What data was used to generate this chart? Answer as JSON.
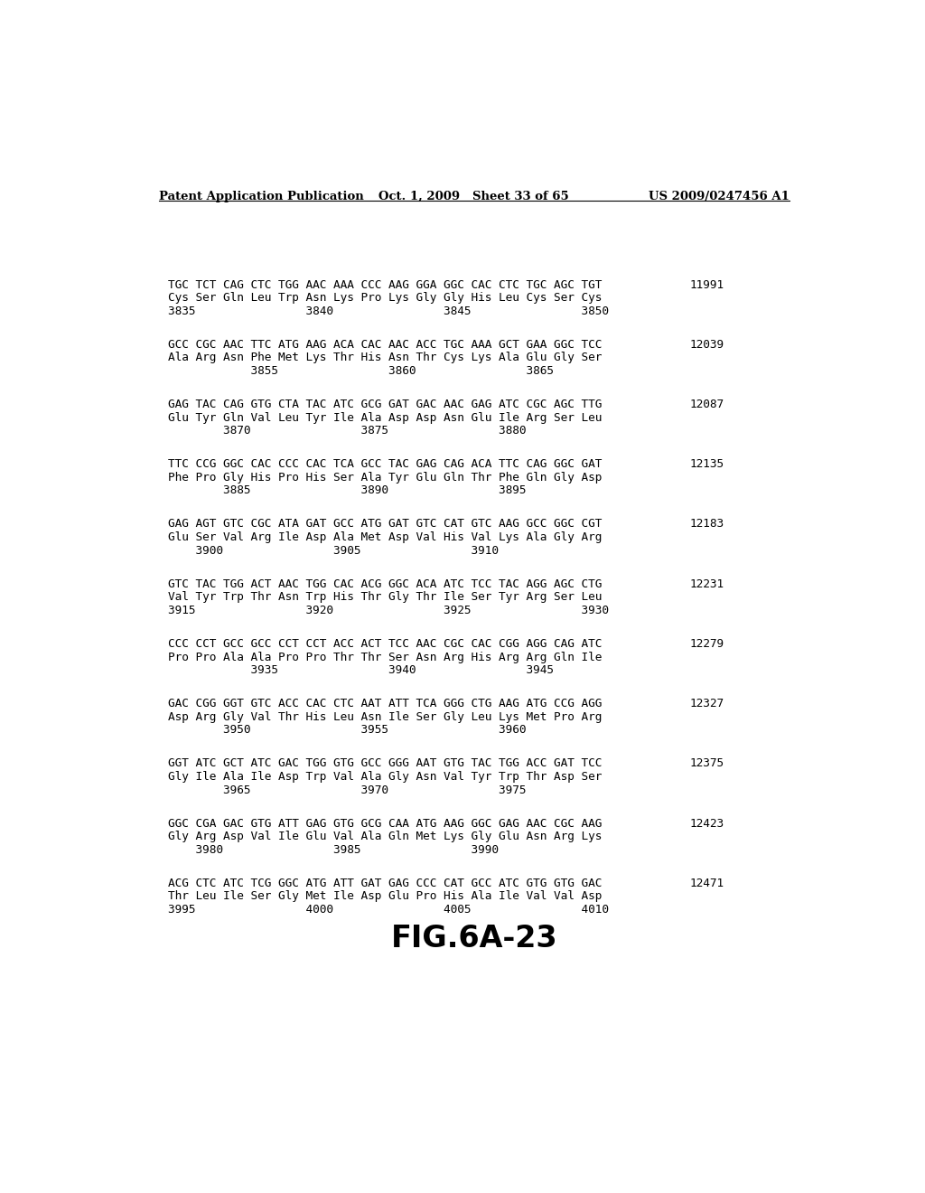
{
  "header_left": "Patent Application Publication",
  "header_mid": "Oct. 1, 2009   Sheet 33 of 65",
  "header_right": "US 2009/0247456 A1",
  "figure_label": "FIG.6A-23",
  "blocks": [
    {
      "line1": "TGC TCT CAG CTC TGG AAC AAA CCC AAG GGA GGC CAC CTC TGC AGC TGT",
      "line2": "Cys Ser Gln Leu Trp Asn Lys Pro Lys Gly Gly His Leu Cys Ser Cys",
      "line3": "3835                3840                3845                3850",
      "num": "11991"
    },
    {
      "line1": "GCC CGC AAC TTC ATG AAG ACA CAC AAC ACC TGC AAA GCT GAA GGC TCC",
      "line2": "Ala Arg Asn Phe Met Lys Thr His Asn Thr Cys Lys Ala Glu Gly Ser",
      "line3": "            3855                3860                3865",
      "num": "12039"
    },
    {
      "line1": "GAG TAC CAG GTG CTA TAC ATC GCG GAT GAC AAC GAG ATC CGC AGC TTG",
      "line2": "Glu Tyr Gln Val Leu Tyr Ile Ala Asp Asp Asn Glu Ile Arg Ser Leu",
      "line3": "        3870                3875                3880",
      "num": "12087"
    },
    {
      "line1": "TTC CCG GGC CAC CCC CAC TCA GCC TAC GAG CAG ACA TTC CAG GGC GAT",
      "line2": "Phe Pro Gly His Pro His Ser Ala Tyr Glu Gln Thr Phe Gln Gly Asp",
      "line3": "        3885                3890                3895",
      "num": "12135"
    },
    {
      "line1": "GAG AGT GTC CGC ATA GAT GCC ATG GAT GTC CAT GTC AAG GCC GGC CGT",
      "line2": "Glu Ser Val Arg Ile Asp Ala Met Asp Val His Val Lys Ala Gly Arg",
      "line3": "    3900                3905                3910",
      "num": "12183"
    },
    {
      "line1": "GTC TAC TGG ACT AAC TGG CAC ACG GGC ACA ATC TCC TAC AGG AGC CTG",
      "line2": "Val Tyr Trp Thr Asn Trp His Thr Gly Thr Ile Ser Tyr Arg Ser Leu",
      "line3": "3915                3920                3925                3930",
      "num": "12231"
    },
    {
      "line1": "CCC CCT GCC GCC CCT CCT ACC ACT TCC AAC CGC CAC CGG AGG CAG ATC",
      "line2": "Pro Pro Ala Ala Pro Pro Thr Thr Ser Asn Arg His Arg Arg Gln Ile",
      "line3": "            3935                3940                3945",
      "num": "12279"
    },
    {
      "line1": "GAC CGG GGT GTC ACC CAC CTC AAT ATT TCA GGG CTG AAG ATG CCG AGG",
      "line2": "Asp Arg Gly Val Thr His Leu Asn Ile Ser Gly Leu Lys Met Pro Arg",
      "line3": "        3950                3955                3960",
      "num": "12327"
    },
    {
      "line1": "GGT ATC GCT ATC GAC TGG GTG GCC GGG AAT GTG TAC TGG ACC GAT TCC",
      "line2": "Gly Ile Ala Ile Asp Trp Val Ala Gly Asn Val Tyr Trp Thr Asp Ser",
      "line3": "        3965                3970                3975",
      "num": "12375"
    },
    {
      "line1": "GGC CGA GAC GTG ATT GAG GTG GCG CAA ATG AAG GGC GAG AAC CGC AAG",
      "line2": "Gly Arg Asp Val Ile Glu Val Ala Gln Met Lys Gly Glu Asn Arg Lys",
      "line3": "    3980                3985                3990",
      "num": "12423"
    },
    {
      "line1": "ACG CTC ATC TCG GGC ATG ATT GAT GAG CCC CAT GCC ATC GTG GTG GAC",
      "line2": "Thr Leu Ile Ser Gly Met Ile Asp Glu Pro His Ala Ile Val Val Asp",
      "line3": "3995                4000                4005                4010",
      "num": "12471"
    }
  ]
}
